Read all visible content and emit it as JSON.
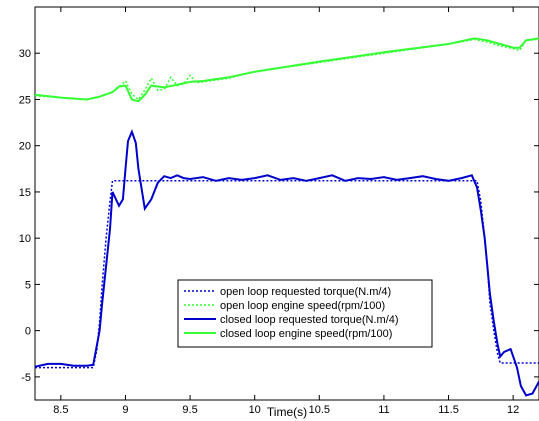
{
  "chart_data": {
    "type": "line",
    "xlabel": "Time(s)",
    "ylabel": "",
    "xlim": [
      8.3,
      12.2
    ],
    "ylim": [
      -7.5,
      35
    ],
    "xticks": [
      "8.5",
      "9",
      "9.5",
      "10",
      "10.5",
      "11",
      "11.5",
      "12"
    ],
    "yticks": [
      "-5",
      "0",
      "5",
      "10",
      "15",
      "20",
      "25",
      "30"
    ],
    "legend_position": "center-right",
    "series": [
      {
        "name": "open loop requested torque(N.m/4)",
        "color": "#0000cc",
        "style": "dotted",
        "x": [
          8.3,
          8.5,
          8.65,
          8.75,
          8.78,
          8.8,
          8.82,
          8.85,
          8.88,
          8.9,
          9.0,
          9.5,
          10.0,
          10.5,
          11.0,
          11.5,
          11.65,
          11.72,
          11.75,
          11.78,
          11.8,
          11.82,
          11.85,
          11.88,
          11.9,
          12.0,
          12.1,
          12.2
        ],
        "y": [
          -4,
          -4,
          -4,
          -4,
          -2,
          1,
          5,
          10,
          14,
          16.2,
          16.2,
          16.2,
          16.2,
          16.2,
          16.2,
          16.2,
          16.2,
          16.2,
          14,
          10,
          7,
          3,
          0,
          -2.5,
          -3.5,
          -3.5,
          -3.5,
          -3.5
        ]
      },
      {
        "name": "open loop engine speed(rpm/100)",
        "color": "#33ff33",
        "style": "dotted",
        "x": [
          8.3,
          8.5,
          8.7,
          8.8,
          8.9,
          8.95,
          9.0,
          9.05,
          9.1,
          9.15,
          9.2,
          9.25,
          9.3,
          9.35,
          9.4,
          9.45,
          9.5,
          9.55,
          9.6,
          9.8,
          10.0,
          10.5,
          11.0,
          11.5,
          11.7,
          11.8,
          11.9,
          12.0,
          12.05,
          12.1,
          12.2
        ],
        "y": [
          25.4,
          25.2,
          25.0,
          25.3,
          25.8,
          26.3,
          27.0,
          25.6,
          25.0,
          26.0,
          27.3,
          26.0,
          26.1,
          27.4,
          26.5,
          26.7,
          27.6,
          26.8,
          26.9,
          27.3,
          28.0,
          29.0,
          30.0,
          31.0,
          31.5,
          31.2,
          30.8,
          30.5,
          30.3,
          31.4,
          31.5
        ]
      },
      {
        "name": "closed loop requested torque(N.m/4)",
        "color": "#0000cc",
        "style": "solid",
        "x": [
          8.3,
          8.4,
          8.5,
          8.6,
          8.7,
          8.75,
          8.8,
          8.82,
          8.85,
          8.88,
          8.9,
          8.95,
          8.98,
          9.0,
          9.02,
          9.05,
          9.08,
          9.1,
          9.15,
          9.2,
          9.25,
          9.3,
          9.35,
          9.4,
          9.45,
          9.5,
          9.6,
          9.7,
          9.8,
          9.9,
          10.0,
          10.1,
          10.2,
          10.3,
          10.4,
          10.5,
          10.6,
          10.7,
          10.8,
          10.9,
          11.0,
          11.1,
          11.2,
          11.3,
          11.4,
          11.5,
          11.6,
          11.68,
          11.72,
          11.75,
          11.78,
          11.8,
          11.82,
          11.85,
          11.88,
          11.9,
          11.93,
          11.98,
          12.0,
          12.03,
          12.06,
          12.1,
          12.15,
          12.2
        ],
        "y": [
          -3.9,
          -3.6,
          -3.6,
          -3.8,
          -3.8,
          -3.7,
          0,
          3,
          7,
          11,
          15,
          13.5,
          14.2,
          17.5,
          20.5,
          21.5,
          20.3,
          17.5,
          13.2,
          14.2,
          16,
          16.7,
          16.5,
          16.8,
          16.5,
          16.4,
          16.6,
          16.2,
          16.5,
          16.3,
          16.5,
          16.8,
          16.3,
          16.5,
          16.2,
          16.5,
          16.8,
          16.2,
          16.5,
          16.4,
          16.6,
          16.3,
          16.5,
          16.7,
          16.4,
          16.2,
          16.5,
          16.8,
          15.5,
          13,
          10,
          7,
          4,
          1,
          -1.5,
          -2.8,
          -2.3,
          -2,
          -2.8,
          -4,
          -6,
          -7,
          -6.8,
          -5.5
        ]
      },
      {
        "name": "closed loop engine speed(rpm/100)",
        "color": "#33ff33",
        "style": "solid",
        "x": [
          8.3,
          8.5,
          8.7,
          8.8,
          8.9,
          8.95,
          9.0,
          9.05,
          9.1,
          9.15,
          9.2,
          9.3,
          9.4,
          9.5,
          9.6,
          9.8,
          10.0,
          10.5,
          11.0,
          11.5,
          11.7,
          11.8,
          11.9,
          12.0,
          12.05,
          12.1,
          12.2
        ],
        "y": [
          25.5,
          25.2,
          25.0,
          25.3,
          25.8,
          26.4,
          26.5,
          25.0,
          24.8,
          25.5,
          26.5,
          26.3,
          26.6,
          26.9,
          27.0,
          27.4,
          28.0,
          29.1,
          30.1,
          31.0,
          31.6,
          31.4,
          31.0,
          30.6,
          30.6,
          31.4,
          31.6
        ]
      }
    ]
  }
}
